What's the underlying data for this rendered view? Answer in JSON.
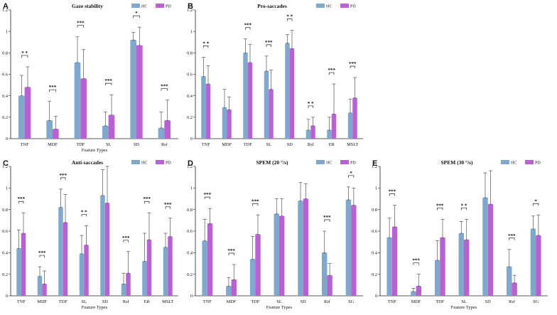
{
  "colors": {
    "HC": "#7fa8cc",
    "PD": "#b861d1"
  },
  "chart_data": [
    {
      "id": "A",
      "type": "bar",
      "title": "Gaze stability",
      "xlabel": "Feature Types",
      "ylim": [
        0,
        1.2
      ],
      "yticks": [
        "0",
        "0.2",
        "0.4",
        "0.6",
        "0.8",
        "1",
        "1.2"
      ],
      "categories": [
        "TNF",
        "MDF",
        "TDF",
        "SL",
        "SD",
        "Rsf"
      ],
      "series": [
        {
          "name": "HC",
          "values": [
            0.4,
            0.17,
            0.71,
            0.12,
            0.92,
            0.1
          ],
          "err": [
            0.19,
            0.18,
            0.24,
            0.13,
            0.07,
            0.15
          ]
        },
        {
          "name": "PD",
          "values": [
            0.48,
            0.09,
            0.56,
            0.22,
            0.87,
            0.17
          ],
          "err": [
            0.19,
            0.12,
            0.27,
            0.19,
            0.17,
            0.19
          ]
        }
      ],
      "significance": [
        "* *",
        "***",
        "***",
        "***",
        "*",
        "***"
      ]
    },
    {
      "id": "B",
      "type": "bar",
      "title": "Pro-saccades",
      "xlabel": "",
      "ylim": [
        0,
        1.2
      ],
      "yticks": [
        "0",
        "0.2",
        "0.4",
        "0.6",
        "0.8",
        "1",
        "1.2"
      ],
      "categories": [
        "TNF",
        "MDF",
        "TDF",
        "SL",
        "SD",
        "Rsf",
        "ER",
        "MSLT"
      ],
      "series": [
        {
          "name": "HC",
          "values": [
            0.58,
            0.29,
            0.8,
            0.63,
            0.89,
            0.08,
            0.08,
            0.24
          ],
          "err": [
            0.18,
            0.17,
            0.13,
            0.14,
            0.08,
            0.1,
            0.12,
            0.13
          ]
        },
        {
          "name": "PD",
          "values": [
            0.51,
            0.27,
            0.71,
            0.46,
            0.84,
            0.12,
            0.23,
            0.38
          ],
          "err": [
            0.17,
            0.12,
            0.17,
            0.18,
            0.17,
            0.08,
            0.28,
            0.19
          ]
        }
      ],
      "significance": [
        "* *",
        "",
        "***",
        "***",
        "* *",
        "* *",
        "***",
        "***"
      ]
    },
    {
      "id": "C",
      "type": "bar",
      "title": "Anti-saccades",
      "xlabel": "Feature Types",
      "ylim": [
        0,
        1.2
      ],
      "yticks": [
        "0",
        "0.2",
        "0.4",
        "0.6",
        "0.8",
        "1",
        "1.2"
      ],
      "categories": [
        "TNF",
        "MDF",
        "TDF",
        "SL",
        "SD",
        "Rsf",
        "ER",
        "MSLT"
      ],
      "series": [
        {
          "name": "HC",
          "values": [
            0.44,
            0.18,
            0.82,
            0.39,
            0.93,
            0.11,
            0.32,
            0.45
          ],
          "err": [
            0.17,
            0.09,
            0.17,
            0.17,
            0.24,
            0.1,
            0.26,
            0.13
          ]
        },
        {
          "name": "PD",
          "values": [
            0.58,
            0.11,
            0.68,
            0.47,
            0.86,
            0.21,
            0.52,
            0.55
          ],
          "err": [
            0.19,
            0.12,
            0.26,
            0.18,
            0.34,
            0.2,
            0.25,
            0.17
          ]
        }
      ],
      "significance": [
        "***",
        "***",
        "***",
        "* *",
        "",
        "***",
        "***",
        "***"
      ]
    },
    {
      "id": "D",
      "type": "bar",
      "title": "SPEM (20 °/s)",
      "xlabel": "Feature Types",
      "ylim": [
        0,
        1.2
      ],
      "yticks": [
        "0",
        "0.2",
        "0.4",
        "0.6",
        "0.8",
        "1",
        "1.2"
      ],
      "categories": [
        "TNF",
        "MDF",
        "TDF",
        "SL",
        "SD",
        "Rsf",
        "SG"
      ],
      "series": [
        {
          "name": "HC",
          "values": [
            0.51,
            0.09,
            0.34,
            0.76,
            0.88,
            0.4,
            0.89
          ],
          "err": [
            0.2,
            0.08,
            0.21,
            0.14,
            0.17,
            0.2,
            0.12
          ]
        },
        {
          "name": "PD",
          "values": [
            0.67,
            0.15,
            0.57,
            0.74,
            0.9,
            0.19,
            0.84
          ],
          "err": [
            0.14,
            0.14,
            0.18,
            0.16,
            0.14,
            0.11,
            0.16
          ]
        }
      ],
      "significance": [
        "***",
        "***",
        "***",
        "",
        "",
        "***",
        "*"
      ]
    },
    {
      "id": "E",
      "type": "bar",
      "title": "SPEM (30 °/s)",
      "xlabel": "Feature Types",
      "ylim": [
        0,
        1.2
      ],
      "yticks": [
        "0",
        "0.2",
        "0.4",
        "0.6",
        "0.8",
        "1",
        "1.2"
      ],
      "categories": [
        "TNF",
        "MDF",
        "TDF",
        "SL",
        "SD",
        "Rsf",
        "SG"
      ],
      "series": [
        {
          "name": "HC",
          "values": [
            0.54,
            0.04,
            0.33,
            0.58,
            0.91,
            0.27,
            0.62
          ],
          "err": [
            0.18,
            0.03,
            0.18,
            0.11,
            0.23,
            0.16,
            0.12
          ]
        },
        {
          "name": "PD",
          "values": [
            0.64,
            0.09,
            0.54,
            0.52,
            0.85,
            0.12,
            0.56
          ],
          "err": [
            0.2,
            0.11,
            0.17,
            0.19,
            0.31,
            0.07,
            0.19
          ]
        }
      ],
      "significance": [
        "***",
        "***",
        "***",
        "* *",
        "",
        "***",
        "*"
      ]
    }
  ]
}
